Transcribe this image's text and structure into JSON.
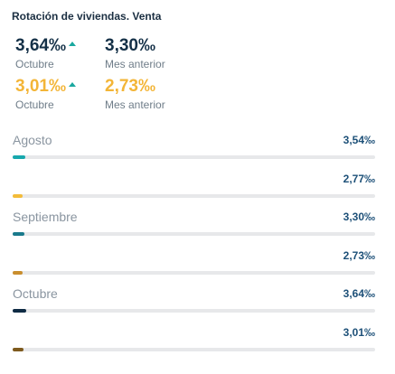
{
  "title": "Rotación de viviendas. Venta",
  "kpis": [
    {
      "value": "3,64‰",
      "label": "Octubre",
      "arrow": "up"
    },
    {
      "value": "3,30‰",
      "label": "Mes anterior"
    },
    {
      "value": "3,01‰",
      "label": "Octubre",
      "arrow": "up"
    },
    {
      "value": "2,73‰",
      "label": "Mes anterior"
    }
  ],
  "colors": {
    "primary": "#143047",
    "secondary": "#f3b537",
    "arrow_up": "#1aa89f",
    "track": "#e7e8ea"
  },
  "chart_data": {
    "type": "bar",
    "categories": [
      "Agosto",
      "Septiembre",
      "Octubre"
    ],
    "series": [
      {
        "values": [
          3.54,
          3.3,
          3.64
        ],
        "labels": [
          "3,54‰",
          "3,30‰",
          "3,64‰"
        ],
        "colors": [
          "#17a8ad",
          "#1a7a8c",
          "#0f2b44"
        ]
      },
      {
        "values": [
          2.77,
          2.73,
          3.01
        ],
        "labels": [
          "2,77‰",
          "2,73‰",
          "3,01‰"
        ],
        "colors": [
          "#f3bc3a",
          "#c98e2e",
          "#7e5a1e"
        ]
      }
    ]
  }
}
